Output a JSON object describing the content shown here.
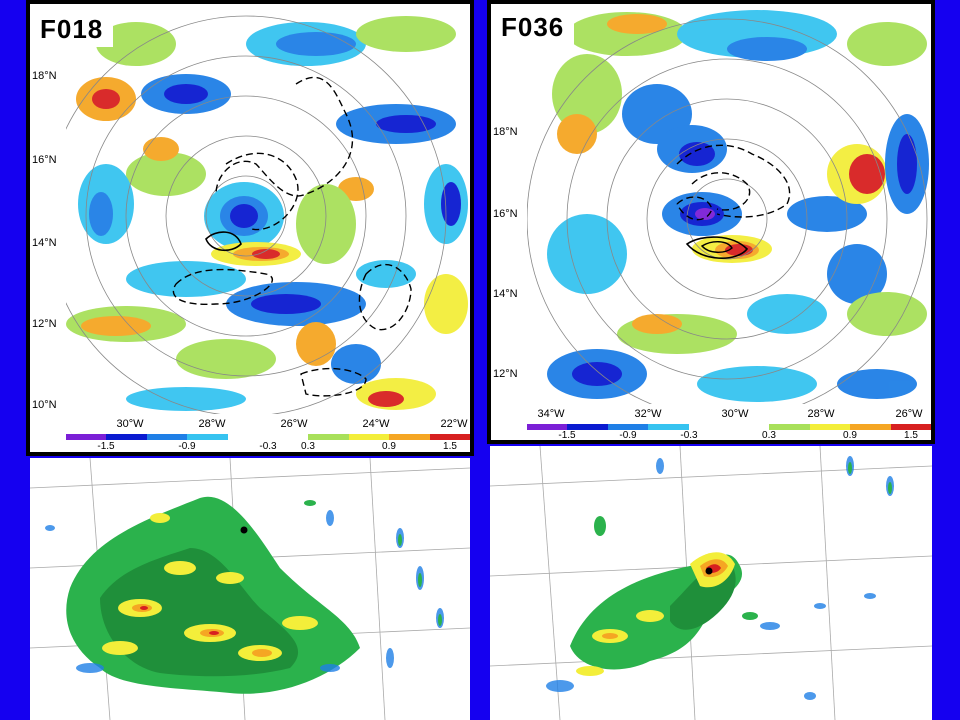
{
  "panels": {
    "left": {
      "label": "F018",
      "lat_labels": [
        "18°N",
        "16°N",
        "14°N",
        "12°N",
        "10°N"
      ],
      "lon_labels": [
        "30°W",
        "28°W",
        "26°W",
        "24°W",
        "22°W"
      ],
      "cbar_ticks": [
        "-1.5",
        "-0.9",
        "-0.3",
        "0.3",
        "0.9",
        "1.5"
      ]
    },
    "right": {
      "label": "F036",
      "lat_labels": [
        "18°N",
        "16°N",
        "14°N",
        "12°N"
      ],
      "lon_labels": [
        "34°W",
        "32°W",
        "30°W",
        "28°W",
        "26°W"
      ],
      "cbar_ticks": [
        "-1.5",
        "-0.9",
        "-0.3",
        "0.3",
        "0.9",
        "1.5"
      ]
    }
  },
  "colorbar_colors": [
    "#7b1fd6",
    "#0a1ad0",
    "#1f7fe6",
    "#36c3f0",
    "#ffffff",
    "#ffffff",
    "#a8e05a",
    "#f3ee3a",
    "#f5a623",
    "#d72020"
  ],
  "colors": {
    "background": "#1500f0",
    "panel_border": "#000000"
  }
}
